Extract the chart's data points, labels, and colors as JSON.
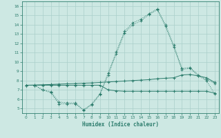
{
  "xlabel": "Humidex (Indice chaleur)",
  "x": [
    0,
    1,
    2,
    3,
    4,
    5,
    6,
    7,
    8,
    9,
    10,
    11,
    12,
    13,
    14,
    15,
    16,
    17,
    18,
    19,
    20,
    21,
    22,
    23
  ],
  "curve1": [
    7.5,
    7.5,
    7.0,
    6.8,
    5.7,
    5.6,
    5.6,
    4.85,
    5.5,
    6.6,
    8.8,
    11.1,
    13.3,
    14.2,
    14.6,
    15.2,
    15.7,
    14.0,
    11.8,
    9.3,
    9.4,
    8.6,
    8.1,
    7.7
  ],
  "curve2": [
    7.5,
    7.5,
    7.0,
    6.7,
    5.5,
    5.5,
    5.5,
    4.8,
    5.4,
    6.5,
    8.6,
    10.9,
    13.1,
    14.0,
    14.4,
    15.1,
    15.6,
    13.8,
    11.6,
    9.2,
    9.3,
    8.5,
    8.0,
    6.55
  ],
  "line_upper": [
    7.5,
    7.52,
    7.55,
    7.58,
    7.62,
    7.65,
    7.68,
    7.72,
    7.75,
    7.8,
    7.85,
    7.9,
    7.95,
    8.0,
    8.05,
    8.1,
    8.2,
    8.25,
    8.3,
    8.6,
    8.65,
    8.5,
    8.3,
    7.8
  ],
  "line_flat": [
    7.5,
    7.5,
    7.5,
    7.5,
    7.5,
    7.5,
    7.5,
    7.5,
    7.5,
    7.5,
    7.0,
    6.9,
    6.85,
    6.85,
    6.85,
    6.85,
    6.85,
    6.85,
    6.85,
    6.85,
    6.85,
    6.85,
    6.85,
    6.65
  ],
  "ylim": [
    4.5,
    16.5
  ],
  "xlim": [
    -0.5,
    23.5
  ],
  "yticks": [
    5,
    6,
    7,
    8,
    9,
    10,
    11,
    12,
    13,
    14,
    15,
    16
  ],
  "xticks": [
    0,
    1,
    2,
    3,
    4,
    5,
    6,
    7,
    8,
    9,
    10,
    11,
    12,
    13,
    14,
    15,
    16,
    17,
    18,
    19,
    20,
    21,
    22,
    23
  ],
  "line_color": "#2d7d6d",
  "bg_color": "#cde8e3",
  "grid_color": "#aacfca",
  "spine_color": "#2d7d6d"
}
